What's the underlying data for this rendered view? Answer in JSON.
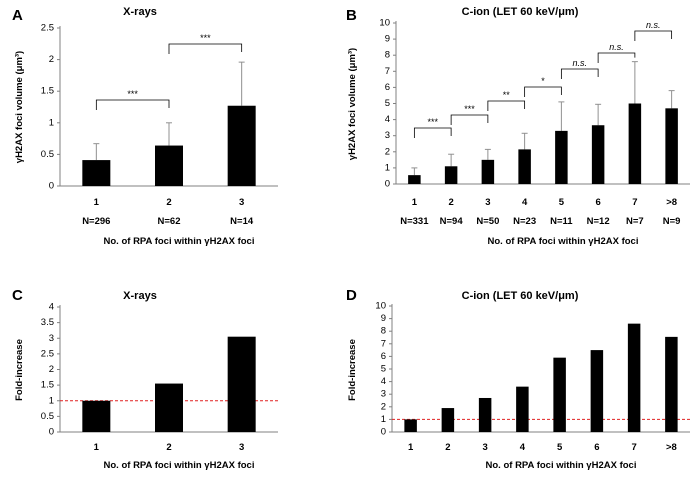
{
  "chart_data": [
    {
      "id": "A",
      "panel": "A",
      "type": "bar",
      "title": "X-rays",
      "ylabel": "γH2AX foci volume (μm³)",
      "xlabel": "No. of RPA foci within γH2AX foci",
      "categories": [
        "1",
        "2",
        "3"
      ],
      "n_labels": [
        "N=296",
        "N=62",
        "N=14"
      ],
      "values": [
        0.41,
        0.64,
        1.27
      ],
      "errors": [
        0.26,
        0.36,
        0.69
      ],
      "ylim": [
        0,
        2.5
      ],
      "yticks": [
        "0",
        "0.5",
        "1",
        "1.5",
        "2",
        "2.5"
      ],
      "significance": [
        {
          "from": "1",
          "to": "2",
          "label": "***"
        },
        {
          "from": "2",
          "to": "3",
          "label": "***"
        }
      ]
    },
    {
      "id": "B",
      "panel": "B",
      "type": "bar",
      "title": "C-ion (LET 60 keV/μm)",
      "ylabel": "γH2AX foci volume (μm³)",
      "xlabel": "No. of RPA foci within γH2AX foci",
      "categories": [
        "1",
        "2",
        "3",
        "4",
        "5",
        "6",
        "7",
        ">8"
      ],
      "n_labels": [
        "N=331",
        "N=94",
        "N=50",
        "N=23",
        "N=11",
        "N=12",
        "N=7",
        "N=9"
      ],
      "values": [
        0.55,
        1.1,
        1.5,
        2.15,
        3.3,
        3.65,
        5.0,
        4.7
      ],
      "errors": [
        0.45,
        0.75,
        0.65,
        1.0,
        1.8,
        1.3,
        2.6,
        1.1
      ],
      "ylim": [
        0,
        10
      ],
      "yticks": [
        "0",
        "1",
        "2",
        "3",
        "4",
        "5",
        "6",
        "7",
        "8",
        "9",
        "10"
      ],
      "significance": [
        {
          "from": "1",
          "to": "2",
          "label": "***"
        },
        {
          "from": "2",
          "to": "3",
          "label": "***"
        },
        {
          "from": "3",
          "to": "4",
          "label": "**"
        },
        {
          "from": "4",
          "to": "5",
          "label": "*"
        },
        {
          "from": "5",
          "to": "6",
          "label": "n.s."
        },
        {
          "from": "6",
          "to": "7",
          "label": "n.s."
        },
        {
          "from": "7",
          "to": ">8",
          "label": "n.s."
        }
      ]
    },
    {
      "id": "C",
      "panel": "C",
      "type": "bar",
      "title": "X-rays",
      "ylabel": "Fold-increase",
      "xlabel": "No. of RPA foci within γH2AX foci",
      "categories": [
        "1",
        "2",
        "3"
      ],
      "values": [
        1.0,
        1.55,
        3.05
      ],
      "ylim": [
        0,
        4
      ],
      "yticks": [
        "0",
        "0.5",
        "1",
        "1.5",
        "2",
        "2.5",
        "3",
        "3.5",
        "4"
      ],
      "reference_line": {
        "y": 1,
        "color": "#e02020",
        "style": "dashed"
      }
    },
    {
      "id": "D",
      "panel": "D",
      "type": "bar",
      "title": "C-ion (LET 60 keV/μm)",
      "ylabel": "Fold-increase",
      "xlabel": "No. of RPA foci within γH2AX foci",
      "categories": [
        "1",
        "2",
        "3",
        "4",
        "5",
        "6",
        "7",
        ">8"
      ],
      "values": [
        1.0,
        1.9,
        2.7,
        3.6,
        5.9,
        6.5,
        8.6,
        7.55
      ],
      "ylim": [
        0,
        10
      ],
      "yticks": [
        "0",
        "1",
        "2",
        "3",
        "4",
        "5",
        "6",
        "7",
        "8",
        "9",
        "10"
      ],
      "reference_line": {
        "y": 1,
        "color": "#e02020",
        "style": "dashed"
      }
    }
  ]
}
